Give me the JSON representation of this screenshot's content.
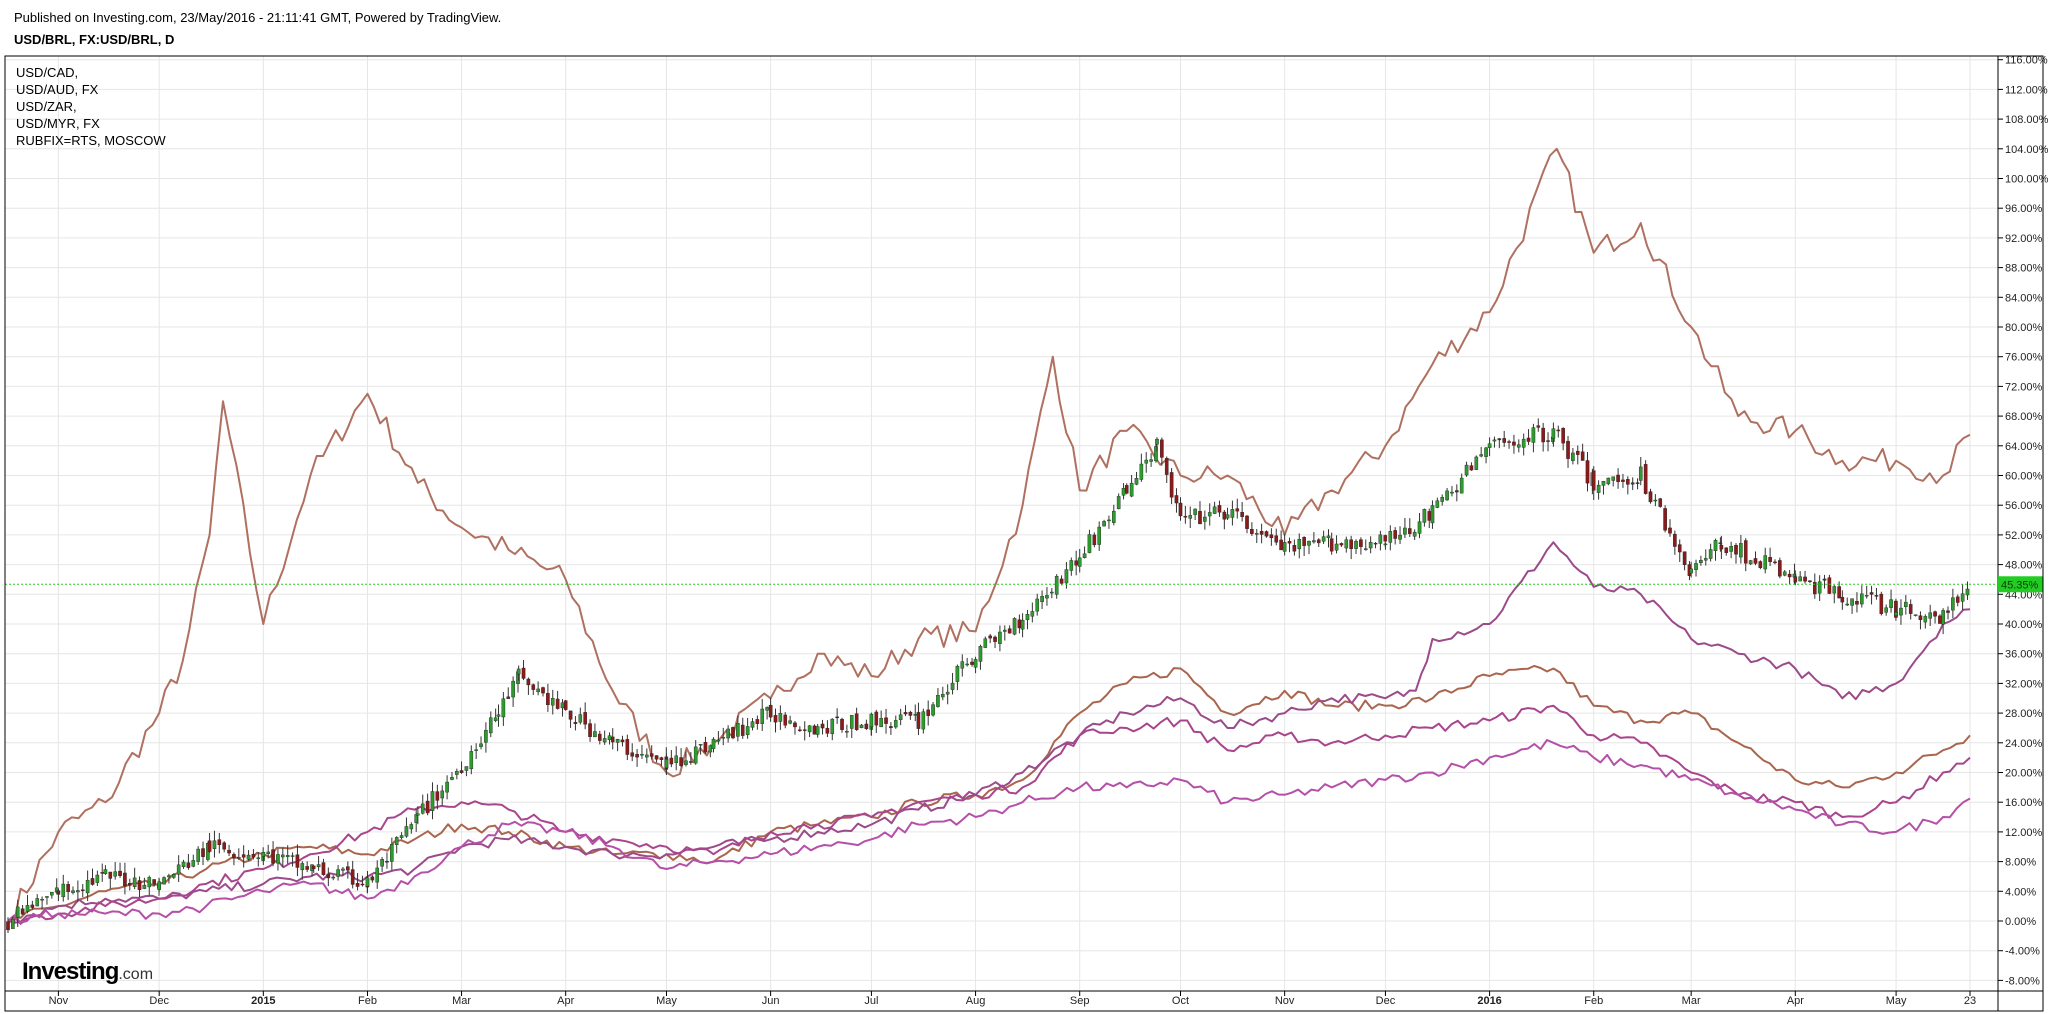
{
  "header": {
    "published": "Published on Investing.com, 23/May/2016 - 21:11:41 GMT, Powered by TradingView.",
    "symbol": "USD/BRL, FX:USD/BRL, D"
  },
  "legend": [
    "USD/CAD,",
    "USD/AUD, FX",
    "USD/ZAR,",
    "USD/MYR, FX",
    "RUBFIX=RTS, MOSCOW"
  ],
  "logo": {
    "main": "Investing",
    "suffix": ".com"
  },
  "chart_data": {
    "type": "line",
    "y_unit": "%",
    "ylim": [
      -9,
      117
    ],
    "y_ticks": [
      "116.00%",
      "112.00%",
      "108.00%",
      "104.00%",
      "100.00%",
      "96.00%",
      "92.00%",
      "88.00%",
      "84.00%",
      "80.00%",
      "76.00%",
      "72.00%",
      "68.00%",
      "64.00%",
      "60.00%",
      "56.00%",
      "52.00%",
      "48.00%",
      "44.00%",
      "40.00%",
      "36.00%",
      "32.00%",
      "28.00%",
      "24.00%",
      "20.00%",
      "16.00%",
      "12.00%",
      "8.00%",
      "4.00%",
      "0.00%",
      "-4.00%",
      "-8.00%"
    ],
    "x_ticks": [
      {
        "label": "Nov",
        "x": "2014-11-01"
      },
      {
        "label": "Dec",
        "x": "2014-12-01"
      },
      {
        "label": "2015",
        "x": "2015-01-01"
      },
      {
        "label": "Feb",
        "x": "2015-02-01"
      },
      {
        "label": "Mar",
        "x": "2015-03-01"
      },
      {
        "label": "Apr",
        "x": "2015-04-01"
      },
      {
        "label": "May",
        "x": "2015-05-01"
      },
      {
        "label": "Jun",
        "x": "2015-06-01"
      },
      {
        "label": "Jul",
        "x": "2015-07-01"
      },
      {
        "label": "Aug",
        "x": "2015-08-01"
      },
      {
        "label": "Sep",
        "x": "2015-09-01"
      },
      {
        "label": "Oct",
        "x": "2015-10-01"
      },
      {
        "label": "Nov",
        "x": "2015-11-01"
      },
      {
        "label": "Dec",
        "x": "2015-12-01"
      },
      {
        "label": "2016",
        "x": "2016-01-01"
      },
      {
        "label": "Feb",
        "x": "2016-02-01"
      },
      {
        "label": "Mar",
        "x": "2016-03-01"
      },
      {
        "label": "Apr",
        "x": "2016-04-01"
      },
      {
        "label": "May",
        "x": "2016-05-01"
      },
      {
        "label": "23",
        "x": "2016-05-23"
      }
    ],
    "current_label": "45.35%",
    "current_value": 45.35,
    "grid": true,
    "colors": {
      "up": "#2e9b2e",
      "down": "#8b1a1a",
      "rub": "#b07060",
      "zar": "#a9654e",
      "myr": "#9b4a8a",
      "cad": "#a8458c",
      "aud": "#b450a8",
      "price_line": "#22cc22",
      "price_badge": "#22cc22"
    },
    "candles": {
      "x": [
        "2014-10-17",
        "2014-11-01",
        "2014-11-15",
        "2014-12-01",
        "2014-12-16",
        "2015-01-01",
        "2015-01-16",
        "2015-02-01",
        "2015-02-16",
        "2015-03-01",
        "2015-03-12",
        "2015-03-18",
        "2015-04-01",
        "2015-04-15",
        "2015-05-01",
        "2015-05-15",
        "2015-06-01",
        "2015-06-15",
        "2015-07-01",
        "2015-07-15",
        "2015-08-01",
        "2015-08-15",
        "2015-09-01",
        "2015-09-15",
        "2015-09-24",
        "2015-10-01",
        "2015-10-15",
        "2015-11-01",
        "2015-11-15",
        "2015-12-01",
        "2015-12-15",
        "2016-01-01",
        "2016-01-20",
        "2016-02-01",
        "2016-02-15",
        "2016-03-01",
        "2016-03-10",
        "2016-04-01",
        "2016-04-15",
        "2016-05-01",
        "2016-05-15",
        "2016-05-23"
      ],
      "close": [
        0,
        4,
        6,
        5,
        10,
        9,
        7,
        5,
        14,
        21,
        28,
        33,
        28,
        24,
        21,
        24,
        28,
        26,
        27,
        27,
        36,
        41,
        49,
        58,
        64,
        54,
        55,
        50,
        51,
        51,
        55,
        64,
        66,
        59,
        60,
        47,
        51,
        46,
        44,
        42,
        41,
        45.35
      ]
    },
    "series": [
      {
        "name": "RUBFIX=RTS, MOSCOW",
        "color": "rub",
        "x": [
          "2014-10-17",
          "2014-11-01",
          "2014-11-15",
          "2014-12-01",
          "2014-12-08",
          "2014-12-16",
          "2014-12-20",
          "2015-01-01",
          "2015-01-15",
          "2015-02-01",
          "2015-02-16",
          "2015-03-01",
          "2015-03-15",
          "2015-04-01",
          "2015-04-15",
          "2015-05-01",
          "2015-05-15",
          "2015-06-01",
          "2015-06-15",
          "2015-07-01",
          "2015-07-15",
          "2015-08-01",
          "2015-08-15",
          "2015-08-24",
          "2015-09-01",
          "2015-09-15",
          "2015-10-01",
          "2015-10-15",
          "2015-11-01",
          "2015-11-15",
          "2015-12-01",
          "2015-12-15",
          "2016-01-01",
          "2016-01-21",
          "2016-02-01",
          "2016-02-15",
          "2016-03-01",
          "2016-03-15",
          "2016-04-01",
          "2016-04-15",
          "2016-05-01",
          "2016-05-15",
          "2016-05-23"
        ],
        "y": [
          0,
          12,
          16,
          28,
          35,
          52,
          70,
          40,
          60,
          71,
          59,
          53,
          50,
          46,
          31,
          20,
          24,
          30,
          36,
          33,
          38,
          39,
          56,
          76,
          58,
          66,
          60,
          60,
          52,
          58,
          64,
          75,
          82,
          104,
          90,
          94,
          80,
          68,
          66,
          62,
          62,
          60,
          65.5
        ]
      },
      {
        "name": "USD/ZAR",
        "color": "zar",
        "x": [
          "2014-10-17",
          "2014-11-01",
          "2014-11-15",
          "2014-12-01",
          "2014-12-15",
          "2015-01-01",
          "2015-01-15",
          "2015-02-01",
          "2015-02-15",
          "2015-03-01",
          "2015-03-15",
          "2015-04-01",
          "2015-04-15",
          "2015-05-01",
          "2015-05-15",
          "2015-06-01",
          "2015-06-15",
          "2015-07-01",
          "2015-07-15",
          "2015-08-01",
          "2015-08-15",
          "2015-09-01",
          "2015-09-15",
          "2015-10-01",
          "2015-10-15",
          "2015-11-01",
          "2015-11-15",
          "2015-12-01",
          "2015-12-15",
          "2016-01-01",
          "2016-01-20",
          "2016-02-01",
          "2016-02-15",
          "2016-03-01",
          "2016-03-15",
          "2016-04-01",
          "2016-04-15",
          "2016-05-01",
          "2016-05-15",
          "2016-05-23"
        ],
        "y": [
          0,
          2,
          4,
          5,
          7,
          9,
          10,
          9,
          11,
          13,
          12,
          10,
          9,
          9,
          8,
          12,
          13,
          14,
          16,
          17,
          19,
          28,
          32,
          34,
          28,
          31,
          29,
          29,
          30,
          33,
          34,
          29,
          27,
          28,
          24,
          19,
          18,
          20,
          23,
          25
        ]
      },
      {
        "name": "USD/MYR, FX",
        "color": "myr",
        "x": [
          "2014-10-17",
          "2014-11-01",
          "2014-11-15",
          "2014-12-01",
          "2014-12-15",
          "2015-01-01",
          "2015-01-15",
          "2015-02-01",
          "2015-02-15",
          "2015-03-01",
          "2015-03-15",
          "2015-04-01",
          "2015-04-15",
          "2015-05-01",
          "2015-05-15",
          "2015-06-01",
          "2015-06-15",
          "2015-07-01",
          "2015-07-15",
          "2015-08-01",
          "2015-08-15",
          "2015-09-01",
          "2015-09-15",
          "2015-10-01",
          "2015-10-15",
          "2015-11-01",
          "2015-11-15",
          "2015-12-01",
          "2015-12-10",
          "2015-12-15",
          "2016-01-01",
          "2016-01-20",
          "2016-02-01",
          "2016-02-15",
          "2016-03-01",
          "2016-03-15",
          "2016-04-01",
          "2016-04-15",
          "2016-05-01",
          "2016-05-15",
          "2016-05-23"
        ],
        "y": [
          0,
          2,
          3,
          3,
          4,
          5,
          6,
          6,
          7,
          10,
          11,
          10,
          9,
          9,
          10,
          11,
          12,
          13,
          15,
          17,
          20,
          25,
          28,
          30,
          26,
          28,
          30,
          30,
          31,
          38,
          40,
          51,
          45,
          44,
          38,
          36,
          34,
          30,
          32,
          40,
          42
        ]
      },
      {
        "name": "USD/CAD,",
        "color": "cad",
        "x": [
          "2014-10-17",
          "2014-11-01",
          "2014-11-15",
          "2014-12-01",
          "2014-12-15",
          "2015-01-01",
          "2015-01-15",
          "2015-02-01",
          "2015-02-15",
          "2015-03-01",
          "2015-03-15",
          "2015-04-01",
          "2015-04-15",
          "2015-05-01",
          "2015-05-15",
          "2015-06-01",
          "2015-06-15",
          "2015-07-01",
          "2015-07-15",
          "2015-08-01",
          "2015-08-15",
          "2015-09-01",
          "2015-09-15",
          "2015-10-01",
          "2015-10-15",
          "2015-11-01",
          "2015-11-15",
          "2015-12-01",
          "2015-12-15",
          "2016-01-01",
          "2016-01-20",
          "2016-02-01",
          "2016-02-15",
          "2016-03-01",
          "2016-03-15",
          "2016-04-01",
          "2016-04-15",
          "2016-05-01",
          "2016-05-15",
          "2016-05-23"
        ],
        "y": [
          0,
          1,
          2,
          3,
          5,
          7,
          9,
          12,
          15,
          16,
          15,
          12,
          11,
          10,
          9,
          12,
          13,
          14,
          16,
          17,
          18,
          25,
          26,
          27,
          23,
          25,
          24,
          25,
          26,
          27,
          29,
          25,
          24,
          20,
          17,
          16,
          14,
          16,
          20,
          22
        ]
      },
      {
        "name": "USD/AUD, FX",
        "color": "aud",
        "x": [
          "2014-10-17",
          "2014-11-01",
          "2014-11-15",
          "2014-12-01",
          "2014-12-15",
          "2015-01-01",
          "2015-01-15",
          "2015-02-01",
          "2015-02-15",
          "2015-03-01",
          "2015-03-15",
          "2015-04-01",
          "2015-04-15",
          "2015-05-01",
          "2015-05-15",
          "2015-06-01",
          "2015-06-15",
          "2015-07-01",
          "2015-07-15",
          "2015-08-01",
          "2015-08-15",
          "2015-09-01",
          "2015-09-15",
          "2015-10-01",
          "2015-10-15",
          "2015-11-01",
          "2015-11-15",
          "2015-12-01",
          "2015-12-15",
          "2016-01-01",
          "2016-01-20",
          "2016-02-01",
          "2016-02-15",
          "2016-03-01",
          "2016-03-15",
          "2016-04-01",
          "2016-04-15",
          "2016-05-01",
          "2016-05-15",
          "2016-05-23"
        ],
        "y": [
          0,
          1,
          1,
          1,
          2,
          4,
          5,
          3,
          6,
          10,
          13,
          12,
          10,
          7,
          8,
          9,
          10,
          11,
          13,
          14,
          16,
          18,
          18,
          19,
          16,
          17,
          18,
          19,
          20,
          22,
          24,
          22,
          21,
          19,
          17,
          15,
          13,
          12,
          14,
          16.5
        ]
      }
    ]
  }
}
